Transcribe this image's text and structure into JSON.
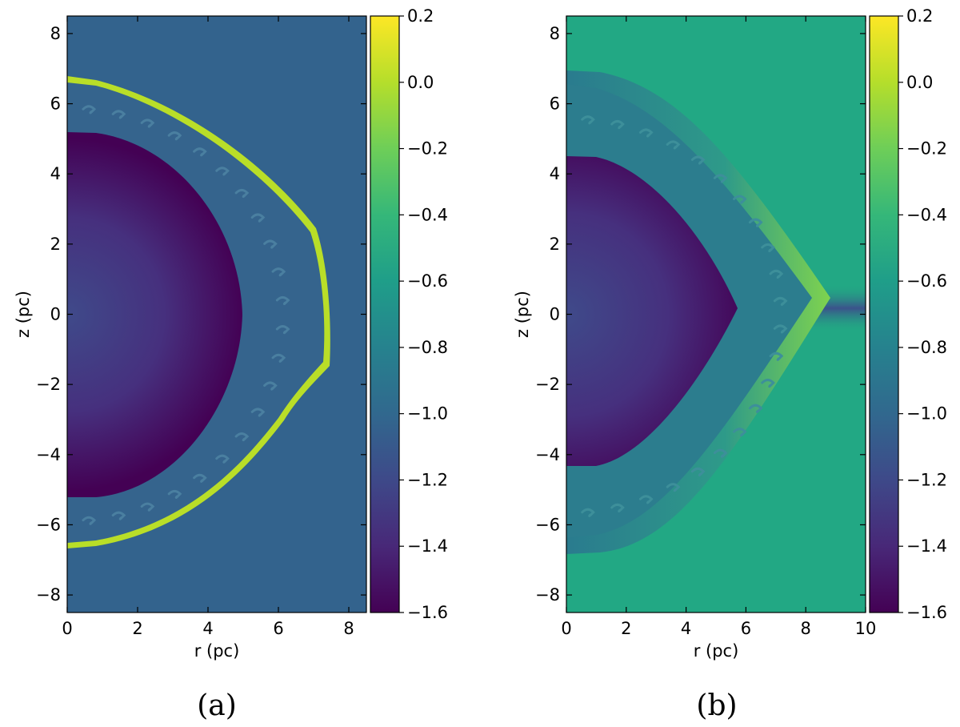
{
  "chart_data": [
    {
      "type": "heatmap",
      "caption": "(a)",
      "xlabel": "r (pc)",
      "ylabel": "z (pc)",
      "xlim": [
        0,
        8.5
      ],
      "ylim": [
        -8.5,
        8.5
      ],
      "xticks": [
        0,
        2,
        4,
        6,
        8
      ],
      "yticks": [
        -8,
        -6,
        -4,
        -2,
        0,
        2,
        4,
        6,
        8
      ],
      "colormap": "viridis",
      "colorbar": {
        "range": [
          -1.6,
          0.2
        ],
        "ticks": [
          "0.2",
          "0.0",
          "−0.2",
          "−0.4",
          "−0.6",
          "−0.8",
          "−1.0",
          "−1.2",
          "−1.4",
          "−1.6"
        ]
      },
      "ambient_value": -0.95,
      "features": {
        "inner_cavity_radius": 5.2,
        "inner_cavity_value": -1.6,
        "shell_value": -0.95,
        "outer_front_top": 6.75,
        "outer_front_bottom": -6.65,
        "outer_front_equator_r": 7.35,
        "front_edge_value": 0.2
      }
    },
    {
      "type": "heatmap",
      "caption": "(b)",
      "xlabel": "r (pc)",
      "ylabel": "z (pc)",
      "xlim": [
        0,
        10
      ],
      "ylim": [
        -8.5,
        8.5
      ],
      "xticks": [
        0,
        2,
        4,
        6,
        8,
        10
      ],
      "yticks": [
        -8,
        -6,
        -4,
        -2,
        0,
        2,
        4,
        6,
        8
      ],
      "colormap": "viridis",
      "colorbar": {
        "range": [
          -1.6,
          0.2
        ],
        "ticks": [
          "0.2",
          "0.0",
          "−0.2",
          "−0.4",
          "−0.6",
          "−0.8",
          "−1.0",
          "−1.2",
          "−1.4",
          "−1.6"
        ]
      },
      "ambient_value": -0.7,
      "features": {
        "inner_cavity_top": 4.5,
        "inner_cavity_bottom": -4.3,
        "inner_cavity_equator_r": 5.8,
        "inner_cavity_value": -1.6,
        "outer_front_top": 7.0,
        "outer_front_bottom": -6.8,
        "outer_front_tip_r": 8.8,
        "outer_front_tip_z": 0.5,
        "front_edge_value": 0.0,
        "equatorial_band_value": -1.1
      }
    }
  ],
  "colors": {
    "viridis_dark": "#440154",
    "viridis_blue": "#31688e",
    "viridis_teal": "#26a486",
    "viridis_green": "#6ece58",
    "viridis_yellow": "#fde725",
    "ambient_a": "#33638d",
    "ambient_b": "#22a884"
  }
}
